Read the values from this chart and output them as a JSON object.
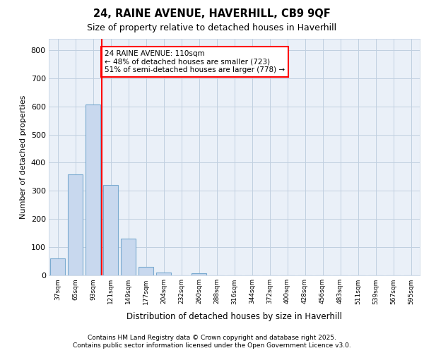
{
  "title1": "24, RAINE AVENUE, HAVERHILL, CB9 9QF",
  "title2": "Size of property relative to detached houses in Haverhill",
  "xlabel": "Distribution of detached houses by size in Haverhill",
  "ylabel": "Number of detached properties",
  "footer1": "Contains HM Land Registry data © Crown copyright and database right 2025.",
  "footer2": "Contains public sector information licensed under the Open Government Licence v3.0.",
  "annotation_line1": "24 RAINE AVENUE: 110sqm",
  "annotation_line2": "← 48% of detached houses are smaller (723)",
  "annotation_line3": "51% of semi-detached houses are larger (778) →",
  "bar_color": "#c8d8ee",
  "bar_edge_color": "#7aaad0",
  "background_color": "#eaf0f8",
  "grid_color": "#c0cfe0",
  "redline_x": 2.5,
  "categories": [
    "37sqm",
    "65sqm",
    "93sqm",
    "121sqm",
    "149sqm",
    "177sqm",
    "204sqm",
    "232sqm",
    "260sqm",
    "288sqm",
    "316sqm",
    "344sqm",
    "372sqm",
    "400sqm",
    "428sqm",
    "456sqm",
    "483sqm",
    "511sqm",
    "539sqm",
    "567sqm",
    "595sqm"
  ],
  "values": [
    60,
    358,
    607,
    320,
    130,
    30,
    10,
    0,
    7,
    0,
    0,
    0,
    0,
    0,
    0,
    0,
    0,
    0,
    0,
    0,
    0
  ],
  "ylim": [
    0,
    840
  ],
  "yticks": [
    0,
    100,
    200,
    300,
    400,
    500,
    600,
    700,
    800
  ]
}
